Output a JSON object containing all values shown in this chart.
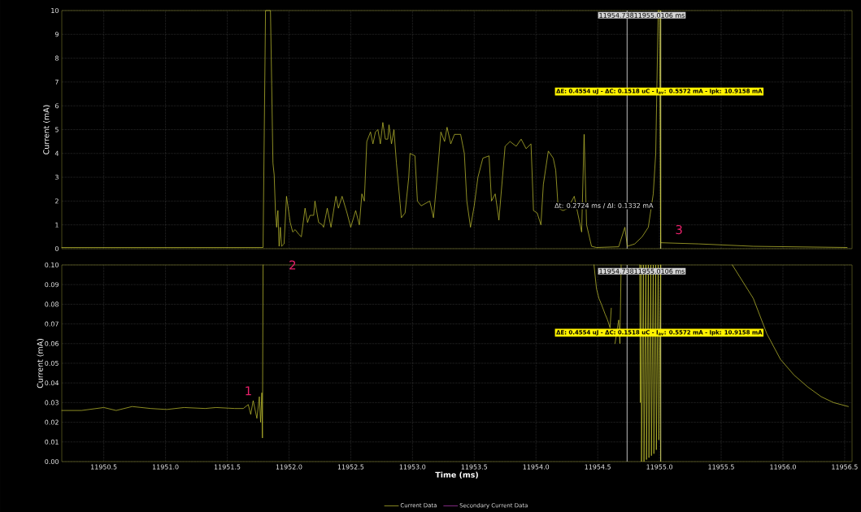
{
  "chart_data": [
    {
      "type": "line",
      "ylabel": "Current (mA)",
      "xlim": [
        11950.16,
        11956.56
      ],
      "ylim": [
        0,
        10
      ],
      "xticks": [
        {
          "value": 11950.5,
          "label": null
        },
        {
          "value": 11951.0,
          "label": null
        },
        {
          "value": 11951.5,
          "label": null
        },
        {
          "value": 11952.0,
          "label": null
        },
        {
          "value": 11952.5,
          "label": null
        },
        {
          "value": 11953.0,
          "label": null
        },
        {
          "value": 11953.5,
          "label": null
        },
        {
          "value": 11954.0,
          "label": null
        },
        {
          "value": 11954.5,
          "label": null
        },
        {
          "value": 11955.0,
          "label": null
        },
        {
          "value": 11955.5,
          "label": null
        },
        {
          "value": 11956.0,
          "label": null
        },
        {
          "value": 11956.5,
          "label": null
        }
      ],
      "yticks": [
        0,
        1,
        2,
        3,
        4,
        5,
        6,
        7,
        8,
        9,
        10
      ],
      "tick_labels": "y",
      "grid": true,
      "marker": "none",
      "line_style": "solid",
      "series": [
        {
          "color": "#c8c832",
          "x": [
            11950.16,
            11951.79,
            11951.81,
            11951.85,
            11951.86,
            11951.87,
            11951.88,
            11951.89,
            11951.9,
            11951.91,
            11951.92,
            11951.93,
            11951.94,
            11951.96,
            11951.98,
            11952.01,
            11952.03,
            11952.05,
            11952.08,
            11952.1,
            11952.13,
            11952.15,
            11952.17,
            11952.2,
            11952.21,
            11952.24,
            11952.27,
            11952.28,
            11952.31,
            11952.34,
            11952.38,
            11952.4,
            11952.43,
            11952.47,
            11952.5,
            11952.54,
            11952.57,
            11952.59,
            11952.61,
            11952.63,
            11952.66,
            11952.68,
            11952.7,
            11952.72,
            11952.74,
            11952.76,
            11952.78,
            11952.8,
            11952.81,
            11952.83,
            11952.85,
            11952.87,
            11952.9,
            11952.91,
            11952.94,
            11952.97,
            11952.98,
            11953.02,
            11953.04,
            11953.07,
            11953.14,
            11953.17,
            11953.2,
            11953.23,
            11953.26,
            11953.28,
            11953.31,
            11953.34,
            11953.39,
            11953.42,
            11953.44,
            11953.47,
            11953.5,
            11953.53,
            11953.57,
            11953.62,
            11953.64,
            11953.67,
            11953.7,
            11953.75,
            11953.79,
            11953.84,
            11953.88,
            11953.92,
            11953.96,
            11953.98,
            11954.01,
            11954.04,
            11954.06,
            11954.1,
            11954.14,
            11954.16,
            11954.18,
            11954.22,
            11954.26,
            11954.31,
            11954.35,
            11954.37,
            11954.39,
            11954.41,
            11954.45,
            11954.49,
            11954.67,
            11954.72,
            11954.74,
            11954.8,
            11954.86,
            11954.91,
            11954.95,
            11954.97,
            11954.99,
            11955.0,
            11955.01,
            11955.32,
            11955.76,
            11956.52
          ],
          "values": [
            0.05,
            0.05,
            10,
            10,
            6.85,
            3.6,
            3.1,
            1.6,
            0.9,
            1.6,
            0.1,
            0.9,
            0.1,
            0.2,
            2.2,
            1.1,
            0.7,
            0.8,
            0.6,
            0.5,
            1.7,
            1.1,
            1.4,
            1.4,
            2.0,
            1.1,
            1.0,
            0.9,
            1.7,
            0.9,
            2.2,
            1.7,
            2.2,
            1.5,
            0.9,
            1.6,
            1.0,
            2.3,
            2.0,
            4.5,
            4.9,
            4.4,
            4.9,
            5.0,
            4.4,
            5.3,
            4.6,
            4.6,
            5.2,
            4.4,
            5.0,
            3.6,
            1.9,
            1.3,
            1.5,
            3.0,
            4.0,
            3.9,
            2.0,
            1.8,
            2.0,
            1.3,
            3.0,
            4.9,
            4.5,
            5.1,
            4.4,
            4.8,
            4.8,
            4.0,
            2.0,
            0.9,
            1.8,
            3.0,
            3.8,
            3.9,
            2.0,
            2.3,
            1.2,
            4.3,
            4.5,
            4.3,
            4.6,
            4.2,
            4.4,
            1.6,
            1.5,
            1.0,
            2.7,
            4.1,
            3.8,
            3.3,
            1.7,
            1.6,
            1.7,
            2.2,
            1.2,
            0.7,
            4.8,
            1.0,
            0.1,
            0.05,
            0.08,
            0.9,
            0.1,
            0.2,
            0.5,
            0.9,
            2.3,
            4.0,
            10,
            10,
            0.25,
            0.2,
            0.1,
            0.05
          ]
        }
      ],
      "ref_lines": [
        {
          "axis": "x",
          "value": 11954.7381,
          "color": "#c0c0c0"
        },
        {
          "axis": "x",
          "value": 11955.0106,
          "color": "#e0e070"
        }
      ],
      "annotations": [
        "11954.73811955.0106 ms",
        "ΔE: 0.4554 uJ - ΔC: 0.1518 uC - I$_{av}$: 0.5572 mA - Ipk: 10.9158 mA",
        "Δt: 0.2724 ms / ΔI: 0.1332 mA",
        "3"
      ]
    },
    {
      "type": "line",
      "xlabel": "Time (ms)",
      "ylabel": "Current (mA)",
      "xlim": [
        11950.16,
        11956.56
      ],
      "ylim": [
        0,
        0.1
      ],
      "xticks": [
        {
          "value": 11950.5,
          "label": "11950.5"
        },
        {
          "value": 11951.0,
          "label": "11951.0"
        },
        {
          "value": 11951.5,
          "label": "11951.5"
        },
        {
          "value": 11952.0,
          "label": "11952.0"
        },
        {
          "value": 11952.5,
          "label": "11952.5"
        },
        {
          "value": 11953.0,
          "label": "11953.0"
        },
        {
          "value": 11953.5,
          "label": "11953.5"
        },
        {
          "value": 11954.0,
          "label": "11954.0"
        },
        {
          "value": 11954.5,
          "label": "11954.5"
        },
        {
          "value": 11955.0,
          "label": "11955.0"
        },
        {
          "value": 11955.5,
          "label": "11955.5"
        },
        {
          "value": 11956.0,
          "label": "11956.0"
        },
        {
          "value": 11956.5,
          "label": "11956.5"
        }
      ],
      "yticks": [
        {
          "value": 0,
          "label": "0.00"
        },
        {
          "value": 0.01,
          "label": "0.01"
        },
        {
          "value": 0.02,
          "label": "0.02"
        },
        {
          "value": 0.03,
          "label": "0.03"
        },
        {
          "value": 0.04,
          "label": "0.04"
        },
        {
          "value": 0.05,
          "label": "0.05"
        },
        {
          "value": 0.06,
          "label": "0.06"
        },
        {
          "value": 0.07,
          "label": "0.07"
        },
        {
          "value": 0.08,
          "label": "0.08"
        },
        {
          "value": 0.09,
          "label": "0.09"
        },
        {
          "value": 0.1,
          "label": "0.10"
        }
      ],
      "grid": true,
      "marker": "none",
      "line_style": "solid",
      "legend": "bottom",
      "series": [
        {
          "name": "Current Data",
          "color": "#c8c832",
          "x": [
            11950.16,
            11950.32,
            11950.5,
            11950.6,
            11950.73,
            11950.88,
            11951.01,
            11951.15,
            11951.32,
            11951.41,
            11951.56,
            11951.63,
            11951.67,
            11951.69,
            11951.71,
            11951.74,
            11951.76,
            11951.77,
            11951.78,
            11951.785,
            11951.79,
            11953.0,
            11954.47,
            11954.49,
            11954.51,
            11954.53,
            11954.56,
            11954.58,
            11954.6,
            11954.61,
            11954.62,
            11954.64,
            11954.67,
            11954.68,
            11954.69,
            11954.76,
            11954.84,
            11954.845,
            11954.85,
            11954.855,
            11954.87,
            11954.875,
            11954.89,
            11954.895,
            11954.91,
            11954.915,
            11954.93,
            11954.935,
            11954.95,
            11954.955,
            11954.97,
            11954.975,
            11954.99,
            11954.995,
            11955.01,
            11955.3,
            11955.59,
            11955.76,
            11955.87,
            11955.98,
            11956.09,
            11956.2,
            11956.31,
            11956.41,
            11956.53
          ],
          "values": [
            0.026,
            0.026,
            0.0275,
            0.026,
            0.028,
            0.027,
            0.0265,
            0.0275,
            0.027,
            0.0275,
            0.027,
            0.027,
            0.029,
            0.024,
            0.031,
            0.022,
            0.033,
            0.02,
            0.035,
            0.012,
            0.1,
            null,
            0.1,
            0.088,
            0.083,
            0.08,
            0.075,
            0.072,
            0.068,
            0.078,
            null,
            0.06,
            0.072,
            0.06,
            0.1,
            null,
            0.1,
            0.03,
            0.1,
            0.0,
            0.1,
            0.0,
            0.1,
            0.001,
            0.1,
            0.002,
            0.1,
            0.003,
            0.1,
            0.004,
            0.1,
            0.006,
            0.1,
            0.011,
            0.1,
            null,
            0.1,
            0.083,
            0.065,
            0.052,
            0.044,
            0.038,
            0.033,
            0.03,
            0.028
          ]
        },
        {
          "name": "Secondary Current Data",
          "color": "#c040c0",
          "values": [
            null
          ]
        }
      ],
      "ref_lines": [
        {
          "axis": "x",
          "value": 11954.7381,
          "color": "#c0c0c0"
        },
        {
          "axis": "x",
          "value": 11955.0106,
          "color": "#e0e070"
        }
      ],
      "annotations": [
        "1",
        "2",
        "11954.73811955.0106 ms",
        "ΔE: 0.4554 uJ - ΔC: 0.1518 uC - I$_{av}$: 0.5572 mA - Ipk: 10.9158 mA"
      ]
    }
  ]
}
